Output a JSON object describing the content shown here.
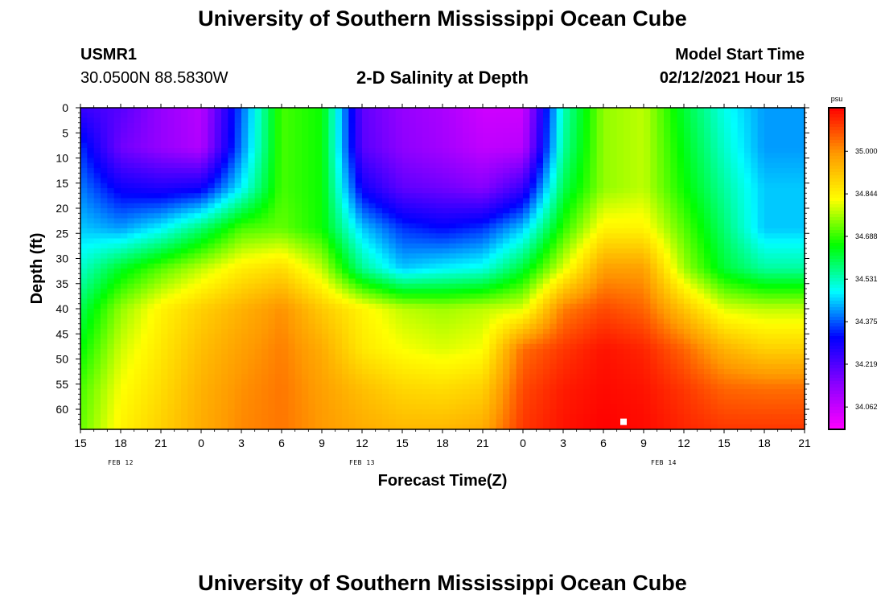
{
  "header": {
    "title": "University of Southern Mississippi Ocean Cube",
    "station": "USMR1",
    "location": "30.0500N 88.5830W",
    "model_start_label": "Model Start Time",
    "model_start_value": "02/12/2021 Hour 15"
  },
  "footer": {
    "title": "University of Southern Mississippi Ocean Cube"
  },
  "colors": {
    "ramp": [
      "#ff00ff",
      "#8800ff",
      "#0000ff",
      "#00ffff",
      "#00ff00",
      "#ffff00",
      "#ff9900",
      "#ff0000"
    ],
    "frame": "#000000",
    "marker": "#ffffff"
  },
  "chart_data": {
    "type": "heatmap",
    "title": "2-D Salinity at Depth",
    "xlabel": "Forecast Time(Z)",
    "ylabel": "Depth (ft)",
    "x_tick_labels": [
      "15",
      "18",
      "21",
      "0",
      "3",
      "6",
      "9",
      "12",
      "15",
      "18",
      "21",
      "0",
      "3",
      "6",
      "9",
      "12",
      "15",
      "18",
      "21"
    ],
    "x_hours_from_start": [
      0,
      54
    ],
    "date_labels": [
      {
        "text": "FEB 12",
        "hour": 3
      },
      {
        "text": "FEB 13",
        "hour": 21
      },
      {
        "text": "FEB 14",
        "hour": 43.5
      }
    ],
    "y_ticks": [
      0,
      5,
      10,
      15,
      20,
      25,
      30,
      35,
      40,
      45,
      50,
      55,
      60
    ],
    "ylim": [
      0,
      64
    ],
    "y_inverted": true,
    "colorbar": {
      "unit": "psu",
      "ticks": [
        34.062,
        34.219,
        34.375,
        34.531,
        34.688,
        34.844,
        35.0
      ],
      "range": [
        33.98,
        35.16
      ]
    },
    "z_units": "psu",
    "depth_grid": [
      0,
      8,
      16,
      24,
      32,
      40,
      48,
      56,
      64
    ],
    "time_grid_hours": [
      0,
      3,
      6,
      9,
      12,
      15,
      18,
      21,
      24,
      27,
      30,
      33,
      36,
      39,
      42,
      45,
      48,
      51,
      54
    ],
    "salinity": [
      [
        34.25,
        34.21,
        34.13,
        34.08,
        34.38,
        34.7,
        34.66,
        34.2,
        34.13,
        34.1,
        34.05,
        34.05,
        34.53,
        34.75,
        34.78,
        34.62,
        34.5,
        34.42,
        34.42
      ],
      [
        34.35,
        34.18,
        34.13,
        34.09,
        34.4,
        34.7,
        34.66,
        34.21,
        34.14,
        34.11,
        34.07,
        34.08,
        34.55,
        34.75,
        34.78,
        34.64,
        34.52,
        34.42,
        34.42
      ],
      [
        34.4,
        34.3,
        34.28,
        34.3,
        34.48,
        34.7,
        34.66,
        34.3,
        34.2,
        34.18,
        34.15,
        34.25,
        34.6,
        34.75,
        34.78,
        34.66,
        34.55,
        34.45,
        34.45
      ],
      [
        34.45,
        34.42,
        34.48,
        34.58,
        34.7,
        34.72,
        34.66,
        34.45,
        34.35,
        34.32,
        34.35,
        34.45,
        34.68,
        34.84,
        34.84,
        34.71,
        34.58,
        34.45,
        34.45
      ],
      [
        34.52,
        34.63,
        34.71,
        34.78,
        34.85,
        34.88,
        34.78,
        34.56,
        34.45,
        34.48,
        34.5,
        34.62,
        34.8,
        34.98,
        34.98,
        34.76,
        34.62,
        34.55,
        34.55
      ],
      [
        34.6,
        34.75,
        34.84,
        34.9,
        34.95,
        35.0,
        34.91,
        34.84,
        34.78,
        34.76,
        34.78,
        34.8,
        35.02,
        35.08,
        35.05,
        34.92,
        34.8,
        34.78,
        34.78
      ],
      [
        34.65,
        34.79,
        34.86,
        34.93,
        34.98,
        35.02,
        34.96,
        34.86,
        34.82,
        34.8,
        34.82,
        35.04,
        35.1,
        35.14,
        35.12,
        35.05,
        34.95,
        34.9,
        34.9
      ],
      [
        34.7,
        34.82,
        34.88,
        34.95,
        35.0,
        35.03,
        34.98,
        34.93,
        34.89,
        34.88,
        34.9,
        35.08,
        35.13,
        35.15,
        35.14,
        35.1,
        35.05,
        35.04,
        35.04
      ],
      [
        34.72,
        34.84,
        34.9,
        34.96,
        35.01,
        35.03,
        34.99,
        34.96,
        34.94,
        34.94,
        34.96,
        35.1,
        35.14,
        35.16,
        35.15,
        35.12,
        35.1,
        35.1,
        35.1
      ]
    ],
    "marker": {
      "hour": 40.5,
      "depth": 62.5
    }
  }
}
